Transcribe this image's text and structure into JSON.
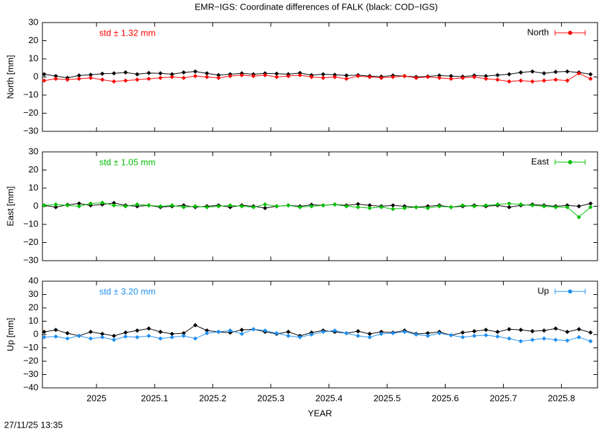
{
  "title": "EMR−IGS: Coordinate differences of FALK (black: COD−IGS)",
  "timestamp": "27/11/25 13:35",
  "chart_data": [
    {
      "type": "line",
      "ylabel": "North [mm]",
      "annotation": "std ± 1.32 mm",
      "legend": "top-right",
      "xlim": [
        2024.907,
        2025.862
      ],
      "xticks": [
        2025,
        2025.1,
        2025.2,
        2025.3,
        2025.4,
        2025.5,
        2025.6,
        2025.7,
        2025.8
      ],
      "ylim": [
        -30,
        30
      ],
      "yticks": [
        {
          "value": -30,
          "label": "−30"
        },
        {
          "value": -20,
          "label": "−20"
        },
        {
          "value": -10,
          "label": "−10"
        },
        0,
        10,
        20,
        30
      ],
      "x": [
        2024.91,
        2024.93,
        2024.95,
        2024.97,
        2024.99,
        2025.01,
        2025.03,
        2025.05,
        2025.07,
        2025.09,
        2025.11,
        2025.13,
        2025.15,
        2025.17,
        2025.19,
        2025.21,
        2025.23,
        2025.25,
        2025.27,
        2025.29,
        2025.31,
        2025.33,
        2025.35,
        2025.37,
        2025.39,
        2025.41,
        2025.43,
        2025.45,
        2025.47,
        2025.49,
        2025.51,
        2025.53,
        2025.55,
        2025.57,
        2025.59,
        2025.61,
        2025.63,
        2025.65,
        2025.67,
        2025.69,
        2025.71,
        2025.73,
        2025.75,
        2025.77,
        2025.79,
        2025.81,
        2025.83,
        2025.85
      ],
      "series": [
        {
          "color": "#000000",
          "values": [
            1.5,
            0.5,
            -0.5,
            0.8,
            1.2,
            1.8,
            2.0,
            2.5,
            1.5,
            2.2,
            2.0,
            1.5,
            2.5,
            3.0,
            2.0,
            1.0,
            1.5,
            2.0,
            1.5,
            2.0,
            1.8,
            1.5,
            2.2,
            1.0,
            1.5,
            1.2,
            0.8,
            1.0,
            0.5,
            0.2,
            0.8,
            0.5,
            0.0,
            0.3,
            0.8,
            0.5,
            0.2,
            0.8,
            0.5,
            1.0,
            1.5,
            2.5,
            3.0,
            2.0,
            2.8,
            3.0,
            2.5,
            1.5
          ]
        },
        {
          "name": "North",
          "color": "#ff0000",
          "values": [
            -2.0,
            -1.0,
            -1.5,
            -1.0,
            -0.5,
            -1.5,
            -2.5,
            -2.0,
            -1.5,
            -1.0,
            -0.5,
            0.0,
            -0.5,
            0.5,
            0.0,
            -0.5,
            0.5,
            1.0,
            0.5,
            1.0,
            0.0,
            0.5,
            1.0,
            0.0,
            -0.5,
            0.0,
            -1.0,
            0.5,
            0.0,
            -0.5,
            0.0,
            0.5,
            -0.5,
            0.0,
            -0.5,
            -1.0,
            -0.5,
            0.0,
            -1.0,
            -1.5,
            -2.5,
            -2.0,
            -2.5,
            -2.0,
            -1.5,
            -2.0,
            2.0,
            -1.0
          ]
        }
      ]
    },
    {
      "type": "line",
      "ylabel": "East [mm]",
      "annotation": "std ± 1.05 mm",
      "legend": "top-right",
      "xlim": [
        2024.907,
        2025.862
      ],
      "xticks": [
        2025,
        2025.1,
        2025.2,
        2025.3,
        2025.4,
        2025.5,
        2025.6,
        2025.7,
        2025.8
      ],
      "ylim": [
        -30,
        30
      ],
      "yticks": [
        {
          "value": -30,
          "label": "−30"
        },
        {
          "value": -20,
          "label": "−20"
        },
        {
          "value": -10,
          "label": "−10"
        },
        0,
        10,
        20,
        30
      ],
      "x": [
        2024.91,
        2024.93,
        2024.95,
        2024.97,
        2024.99,
        2025.01,
        2025.03,
        2025.05,
        2025.07,
        2025.09,
        2025.11,
        2025.13,
        2025.15,
        2025.17,
        2025.19,
        2025.21,
        2025.23,
        2025.25,
        2025.27,
        2025.29,
        2025.31,
        2025.33,
        2025.35,
        2025.37,
        2025.39,
        2025.41,
        2025.43,
        2025.45,
        2025.47,
        2025.49,
        2025.51,
        2025.53,
        2025.55,
        2025.57,
        2025.59,
        2025.61,
        2025.63,
        2025.65,
        2025.67,
        2025.69,
        2025.71,
        2025.73,
        2025.75,
        2025.77,
        2025.79,
        2025.81,
        2025.83,
        2025.85
      ],
      "series": [
        {
          "color": "#000000",
          "values": [
            0.5,
            -0.5,
            0.8,
            1.5,
            0.5,
            1.0,
            1.8,
            0.5,
            0.0,
            0.5,
            -0.5,
            0.0,
            0.5,
            -0.5,
            0.0,
            0.5,
            -0.5,
            0.5,
            0.0,
            -1.0,
            0.0,
            0.5,
            0.0,
            0.8,
            0.5,
            1.0,
            0.5,
            1.2,
            0.5,
            0.0,
            0.5,
            0.0,
            -0.5,
            0.0,
            0.5,
            -0.5,
            0.0,
            0.5,
            0.0,
            0.5,
            -0.5,
            0.5,
            1.0,
            0.5,
            0.0,
            0.5,
            0.0,
            1.5
          ]
        },
        {
          "name": "East",
          "color": "#00c000",
          "values": [
            0.5,
            1.0,
            0.5,
            0.0,
            1.5,
            2.0,
            0.5,
            0.0,
            1.0,
            0.5,
            0.0,
            0.5,
            -0.5,
            0.0,
            -0.5,
            0.0,
            0.5,
            0.0,
            -0.5,
            1.0,
            0.0,
            0.5,
            -0.5,
            0.0,
            0.5,
            1.0,
            0.0,
            -0.5,
            -1.0,
            -0.5,
            -1.5,
            -1.0,
            -0.5,
            -1.0,
            0.0,
            -0.5,
            0.5,
            0.0,
            0.5,
            1.0,
            1.5,
            1.0,
            0.5,
            0.0,
            -0.5,
            -0.5,
            -6.0,
            -0.5
          ]
        }
      ]
    },
    {
      "type": "line",
      "ylabel": "Up [mm]",
      "xlabel": "YEAR",
      "annotation": "std ± 3.20 mm",
      "legend": "top-right",
      "xlim": [
        2024.907,
        2025.862
      ],
      "xticks": [
        2025,
        2025.1,
        2025.2,
        2025.3,
        2025.4,
        2025.5,
        2025.6,
        2025.7,
        2025.8
      ],
      "ylim": [
        -40,
        40
      ],
      "yticks": [
        {
          "value": -40,
          "label": "−40"
        },
        {
          "value": -30,
          "label": "−30"
        },
        {
          "value": -20,
          "label": "−20"
        },
        {
          "value": -10,
          "label": "−10"
        },
        0,
        10,
        20,
        30,
        40
      ],
      "x": [
        2024.91,
        2024.93,
        2024.95,
        2024.97,
        2024.99,
        2025.01,
        2025.03,
        2025.05,
        2025.07,
        2025.09,
        2025.11,
        2025.13,
        2025.15,
        2025.17,
        2025.19,
        2025.21,
        2025.23,
        2025.25,
        2025.27,
        2025.29,
        2025.31,
        2025.33,
        2025.35,
        2025.37,
        2025.39,
        2025.41,
        2025.43,
        2025.45,
        2025.47,
        2025.49,
        2025.51,
        2025.53,
        2025.55,
        2025.57,
        2025.59,
        2025.61,
        2025.63,
        2025.65,
        2025.67,
        2025.69,
        2025.71,
        2025.73,
        2025.75,
        2025.77,
        2025.79,
        2025.81,
        2025.83,
        2025.85
      ],
      "series": [
        {
          "color": "#000000",
          "values": [
            2.0,
            3.5,
            1.0,
            -1.0,
            2.0,
            0.5,
            -1.0,
            1.5,
            3.0,
            4.5,
            2.0,
            0.5,
            1.0,
            7.0,
            3.0,
            2.0,
            1.5,
            3.5,
            4.0,
            2.0,
            0.5,
            2.0,
            -1.0,
            1.5,
            3.0,
            2.0,
            1.0,
            2.5,
            0.5,
            2.0,
            1.5,
            3.0,
            0.5,
            1.0,
            2.0,
            -0.5,
            1.5,
            2.5,
            3.5,
            2.0,
            4.0,
            3.5,
            2.5,
            3.0,
            4.5,
            2.0,
            4.0,
            1.5
          ]
        },
        {
          "name": "Up",
          "color": "#1e8ff0",
          "values": [
            -2.0,
            -1.5,
            -3.0,
            -1.0,
            -3.0,
            -2.0,
            -4.0,
            -1.5,
            -2.0,
            -1.0,
            -3.0,
            -2.0,
            -1.0,
            -3.0,
            1.0,
            2.0,
            3.0,
            0.5,
            4.0,
            3.0,
            1.0,
            -1.0,
            -2.0,
            0.0,
            2.0,
            3.0,
            1.0,
            -1.0,
            -2.0,
            0.5,
            1.0,
            2.0,
            0.0,
            -1.0,
            1.0,
            -0.5,
            -2.0,
            -1.0,
            -0.5,
            -1.5,
            -3.0,
            -5.0,
            -4.0,
            -3.0,
            -4.0,
            -4.5,
            -2.0,
            -5.0
          ]
        }
      ]
    }
  ]
}
